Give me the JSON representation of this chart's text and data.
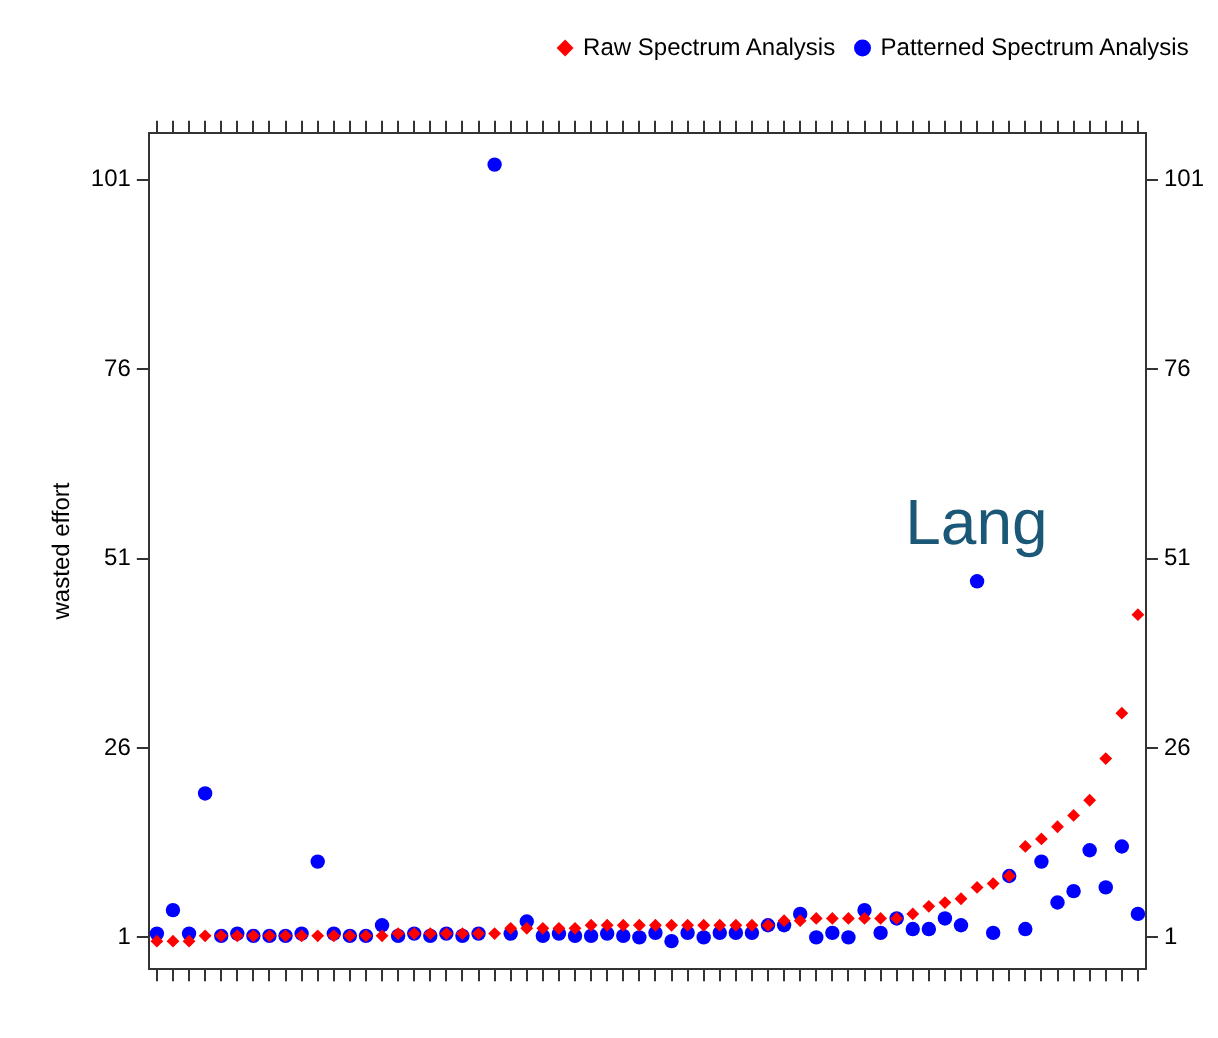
{
  "chart_data": {
    "type": "scatter",
    "ylabel": "wasted effort",
    "categories": [
      null,
      null,
      null,
      null,
      null,
      null,
      null,
      null,
      null,
      null,
      null,
      null,
      null,
      null,
      null,
      null,
      null,
      null,
      null,
      null,
      null,
      null,
      null,
      null,
      null,
      null,
      null,
      null,
      null,
      null,
      null,
      null,
      null,
      null,
      null,
      null,
      null,
      null,
      null,
      null,
      null,
      null,
      null,
      null,
      null,
      null,
      null,
      null,
      null,
      null,
      null,
      null,
      null,
      null,
      null,
      null,
      null,
      null,
      null,
      null,
      null,
      null
    ],
    "series": [
      {
        "name": "Patterned Spectrum Analysis",
        "color": "#0000ff",
        "marker": "circle",
        "values": [
          1.5,
          4.6,
          1.5,
          20,
          1.2,
          1.5,
          1.2,
          1.2,
          1.2,
          1.5,
          11,
          1.5,
          1.2,
          1.2,
          2.6,
          1.2,
          1.5,
          1.2,
          1.5,
          1.2,
          1.5,
          103,
          1.5,
          3.1,
          1.2,
          1.5,
          1.2,
          1.2,
          1.5,
          1.2,
          1,
          1.6,
          0.5,
          1.6,
          1,
          1.6,
          1.6,
          1.6,
          2.6,
          2.6,
          4.1,
          1,
          1.6,
          1,
          4.6,
          1.6,
          3.5,
          2.1,
          2.1,
          3.5,
          2.6,
          48,
          1.6,
          9.1,
          2.1,
          11,
          5.6,
          7.1,
          12.5,
          7.6,
          13,
          4.1
        ]
      },
      {
        "name": "Raw Spectrum Analysis",
        "color": "#ff0000",
        "marker": "diamond",
        "values": [
          0.5,
          0.5,
          0.5,
          1.2,
          1.2,
          1.2,
          1.2,
          1.2,
          1.2,
          1.2,
          1.2,
          1.2,
          1.2,
          1.2,
          1.2,
          1.5,
          1.5,
          1.5,
          1.5,
          1.5,
          1.5,
          1.5,
          2.2,
          2.2,
          2.2,
          2.2,
          2.2,
          2.6,
          2.6,
          2.6,
          2.6,
          2.6,
          2.6,
          2.6,
          2.6,
          2.6,
          2.6,
          2.6,
          2.6,
          3.2,
          3.2,
          3.5,
          3.5,
          3.5,
          3.5,
          3.5,
          3.5,
          4.1,
          5.1,
          5.6,
          6.1,
          7.6,
          8.1,
          9.1,
          13,
          14,
          15.6,
          17.1,
          19.1,
          24.6,
          30.6,
          43.6
        ]
      }
    ],
    "ylim": [
      -3.2,
      107.2
    ],
    "yticks": [
      1,
      26,
      51,
      76,
      101
    ],
    "y2lim": [
      -3.2,
      107.2
    ],
    "y2ticks": [
      1,
      26,
      51,
      76,
      101
    ],
    "legend": "top right",
    "grid": false,
    "annotations": [
      "Lang"
    ]
  }
}
